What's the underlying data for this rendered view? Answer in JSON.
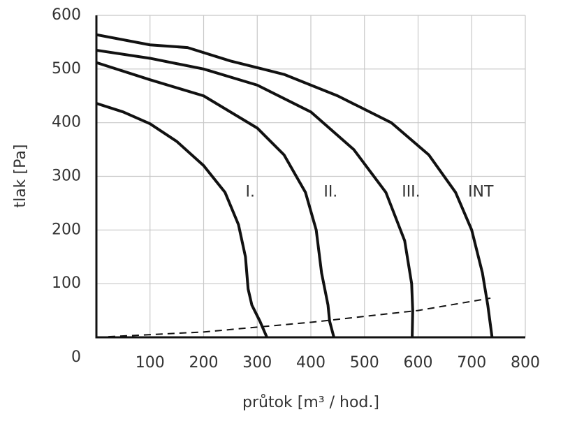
{
  "chart_data": {
    "type": "line",
    "x_label": "průtok [m³ / hod.]",
    "y_label": "tlak [Pa]",
    "xlim": [
      0,
      800
    ],
    "ylim": [
      0,
      600
    ],
    "xticks": [
      100,
      200,
      300,
      400,
      500,
      600,
      700,
      800
    ],
    "yticks": [
      0,
      100,
      200,
      300,
      400,
      500,
      600
    ],
    "grid": true,
    "series": [
      {
        "name": "I.",
        "color": "#111111",
        "x": [
          0,
          50,
          100,
          150,
          200,
          240,
          265,
          278,
          283,
          290,
          305,
          318
        ],
        "values": [
          436,
          420,
          398,
          365,
          320,
          270,
          210,
          150,
          90,
          60,
          30,
          0
        ]
      },
      {
        "name": "II.",
        "color": "#111111",
        "x": [
          0,
          100,
          200,
          300,
          350,
          390,
          410,
          420,
          428,
          432,
          435,
          443
        ],
        "values": [
          512,
          480,
          450,
          390,
          340,
          270,
          200,
          120,
          80,
          60,
          30,
          0
        ]
      },
      {
        "name": "III.",
        "color": "#111111",
        "x": [
          0,
          100,
          200,
          300,
          400,
          480,
          540,
          575,
          588,
          590,
          589
        ],
        "values": [
          535,
          520,
          500,
          470,
          420,
          350,
          270,
          180,
          100,
          50,
          0
        ]
      },
      {
        "name": "INT",
        "color": "#111111",
        "x": [
          0,
          100,
          170,
          250,
          350,
          450,
          550,
          620,
          670,
          700,
          720,
          730,
          738
        ],
        "values": [
          564,
          545,
          540,
          515,
          490,
          450,
          400,
          340,
          270,
          200,
          120,
          60,
          0
        ]
      },
      {
        "color": "#111111",
        "dashed": true,
        "x": [
          0,
          200,
          400,
          600,
          735
        ],
        "values": [
          0,
          10,
          28,
          50,
          73
        ]
      }
    ]
  }
}
